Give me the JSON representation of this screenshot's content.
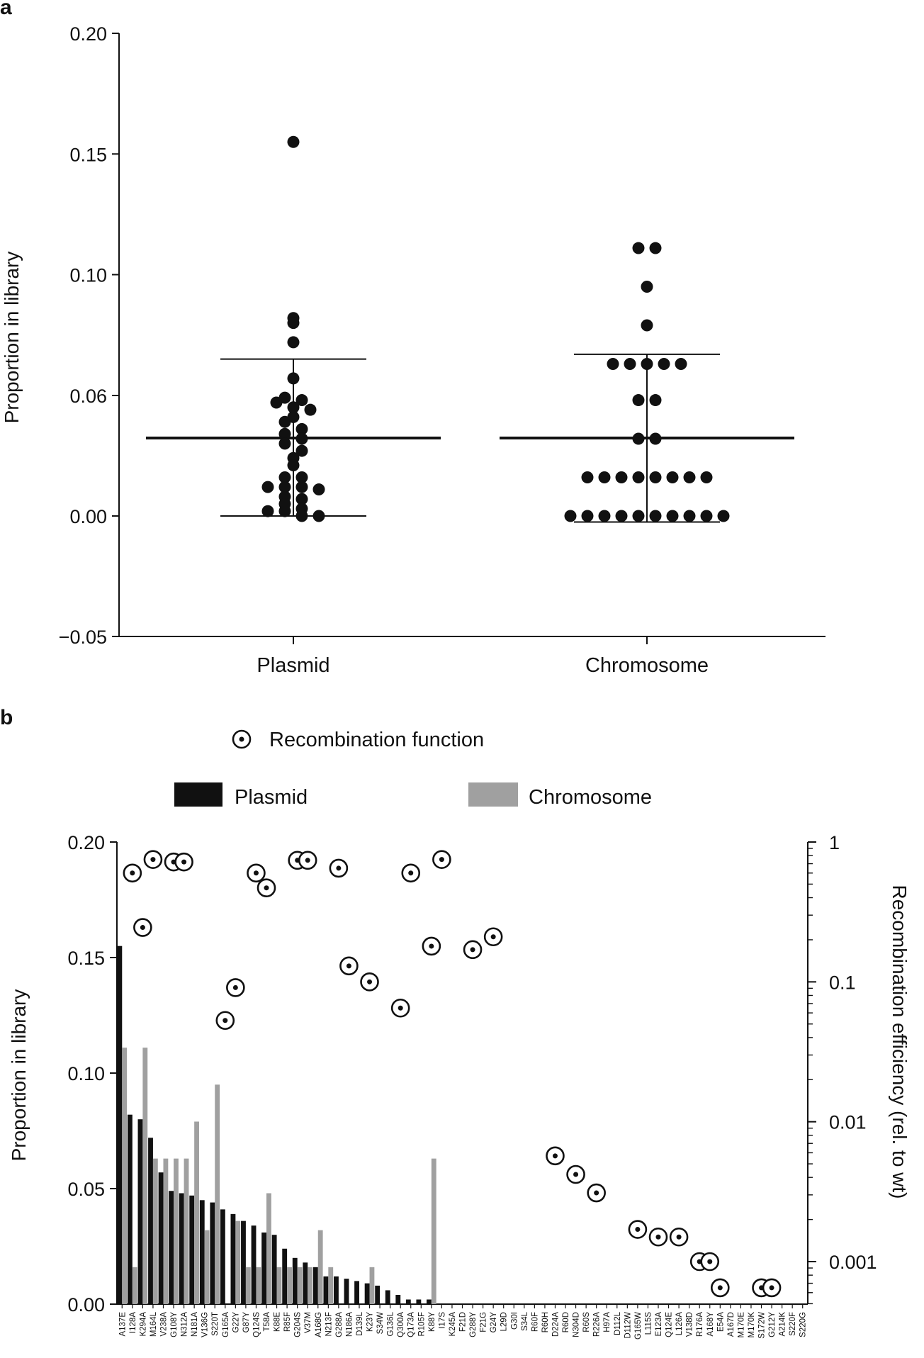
{
  "chart_data": [
    {
      "panel_label": "a",
      "type": "scatter",
      "ylabel": "Proportion in library",
      "ylim": [
        -0.05,
        0.2
      ],
      "yticks": [
        -0.05,
        0.0,
        0.06,
        0.1,
        0.15,
        0.2
      ],
      "ytick_labels": [
        "−0.05",
        "0.00",
        "0.06",
        "0.10",
        "0.15",
        "0.20"
      ],
      "categories": [
        "Plasmid",
        "Chromosome"
      ],
      "grid": false,
      "groups": [
        {
          "name": "Plasmid",
          "mean": 0.0323,
          "sd_upper": 0.065,
          "sd_lower": 0.0,
          "points": [
            0.155,
            0.082,
            0.08,
            0.072,
            0.057,
            0.049,
            0.048,
            0.047,
            0.045,
            0.044,
            0.041,
            0.039,
            0.036,
            0.034,
            0.032,
            0.03,
            0.027,
            0.024,
            0.021,
            0.016,
            0.016,
            0.012,
            0.012,
            0.012,
            0.011,
            0.008,
            0.007,
            0.005,
            0.003,
            0.002,
            0.002,
            0.0,
            0.0
          ]
        },
        {
          "name": "Chromosome",
          "mean": 0.0323,
          "sd_upper": 0.067,
          "sd_lower": -0.0025,
          "points": [
            0.111,
            0.111,
            0.095,
            0.079,
            0.063,
            0.063,
            0.063,
            0.063,
            0.063,
            0.048,
            0.048,
            0.032,
            0.032,
            0.016,
            0.016,
            0.016,
            0.016,
            0.016,
            0.016,
            0.016,
            0.016,
            0.0,
            0.0,
            0.0,
            0.0,
            0.0,
            0.0,
            0.0,
            0.0,
            0.0,
            0.0
          ]
        }
      ]
    },
    {
      "panel_label": "b",
      "type": "bar",
      "ylabel": "Proportion in library",
      "y2label": "Recombination efficiency (rel. to wt)",
      "ylim": [
        0,
        0.2
      ],
      "yticks": [
        0.0,
        0.05,
        0.1,
        0.15,
        0.2
      ],
      "ytick_labels": [
        "0.00",
        "0.05",
        "0.10",
        "0.15",
        "0.20"
      ],
      "y2_scale": "log",
      "y2lim": [
        0.0005,
        1
      ],
      "y2ticks": [
        0.001,
        0.01,
        0.1,
        1
      ],
      "y2tick_labels": [
        "0.001",
        "0.01",
        "0.1",
        "1"
      ],
      "legend": {
        "marker_label": "Recombination function",
        "items": [
          {
            "name": "Plasmid",
            "color": "#111111"
          },
          {
            "name": "Chromosome",
            "color": "#a0a0a0"
          }
        ]
      },
      "categories": [
        "A137E",
        "I128A",
        "K294A",
        "M164L",
        "V238A",
        "G108Y",
        "N312A",
        "N181A",
        "V136G",
        "S220T",
        "G165A",
        "G22Y",
        "G87Y",
        "Q124S",
        "T58A",
        "K88E",
        "R85F",
        "G204S",
        "V37M",
        "A168G",
        "N213F",
        "G288A",
        "N186A",
        "D139L",
        "K23Y",
        "S34W",
        "G136L",
        "Q300A",
        "Q173A",
        "R105F",
        "K88Y",
        "I17S",
        "K245A",
        "F21D",
        "G288Y",
        "F21G",
        "G24Y",
        "L29D",
        "G30I",
        "S34L",
        "R60F",
        "R60H",
        "D224A",
        "R60D",
        "N304D",
        "R60S",
        "R226A",
        "H97A",
        "D112L",
        "D112W",
        "G165W",
        "L115S",
        "E123A",
        "Q124E",
        "L126A",
        "V138D",
        "R176A",
        "A168Y",
        "E54A",
        "A167D",
        "M170E",
        "M170K",
        "S172W",
        "G212Y",
        "A214K",
        "S220F",
        "S220G"
      ],
      "series": [
        {
          "name": "Plasmid",
          "values": [
            0.155,
            0.082,
            0.08,
            0.072,
            0.057,
            0.049,
            0.048,
            0.047,
            0.045,
            0.044,
            0.041,
            0.039,
            0.036,
            0.034,
            0.031,
            0.03,
            0.024,
            0.02,
            0.018,
            0.016,
            0.012,
            0.012,
            0.011,
            0.01,
            0.009,
            0.008,
            0.006,
            0.004,
            0.002,
            0.002,
            0.002,
            0,
            0,
            0,
            0,
            0,
            0,
            0,
            0,
            0,
            0,
            0,
            0,
            0,
            0,
            0,
            0,
            0,
            0,
            0,
            0,
            0,
            0,
            0,
            0,
            0,
            0,
            0,
            0,
            0,
            0,
            0,
            0,
            0,
            0,
            0,
            0
          ]
        },
        {
          "name": "Chromosome",
          "values": [
            0.111,
            0.016,
            0.111,
            0.063,
            0.063,
            0.063,
            0.063,
            0.079,
            0.032,
            0.095,
            0,
            0.036,
            0.016,
            0.016,
            0.048,
            0.016,
            0.016,
            0.016,
            0.016,
            0.032,
            0.016,
            0,
            0,
            0,
            0.016,
            0,
            0,
            0,
            0,
            0,
            0.063,
            0,
            0,
            0,
            0,
            0,
            0,
            0,
            0,
            0,
            0,
            0,
            0,
            0,
            0,
            0,
            0,
            0,
            0,
            0,
            0,
            0,
            0,
            0,
            0,
            0,
            0,
            0,
            0,
            0,
            0,
            0,
            0,
            0,
            0,
            0,
            0
          ]
        }
      ],
      "recombination_points": [
        {
          "category": "I128A",
          "value": 0.6
        },
        {
          "category": "K294A",
          "value": 0.245
        },
        {
          "category": "M164L",
          "value": 0.75
        },
        {
          "category": "G108Y",
          "value": 0.72
        },
        {
          "category": "N312A",
          "value": 0.72
        },
        {
          "category": "G165A",
          "value": 0.053
        },
        {
          "category": "G22Y",
          "value": 0.091
        },
        {
          "category": "Q124S",
          "value": 0.6
        },
        {
          "category": "T58A",
          "value": 0.47
        },
        {
          "category": "G204S",
          "value": 0.74
        },
        {
          "category": "V37M",
          "value": 0.74
        },
        {
          "category": "G288A",
          "value": 0.65
        },
        {
          "category": "N186A",
          "value": 0.13
        },
        {
          "category": "K23Y",
          "value": 0.1
        },
        {
          "category": "Q300A",
          "value": 0.065
        },
        {
          "category": "Q173A",
          "value": 0.6
        },
        {
          "category": "K88Y",
          "value": 0.18
        },
        {
          "category": "I17S",
          "value": 0.75
        },
        {
          "category": "G288Y",
          "value": 0.17
        },
        {
          "category": "G24Y",
          "value": 0.21
        },
        {
          "category": "D224A",
          "value": 0.0057
        },
        {
          "category": "N304D",
          "value": 0.0042
        },
        {
          "category": "R226A",
          "value": 0.0031
        },
        {
          "category": "G165W",
          "value": 0.0017
        },
        {
          "category": "E123A",
          "value": 0.0015
        },
        {
          "category": "L126A",
          "value": 0.0015
        },
        {
          "category": "R176A",
          "value": 0.001
        },
        {
          "category": "A168Y",
          "value": 0.001
        },
        {
          "category": "E54A",
          "value": 0.00065
        },
        {
          "category": "S172W",
          "value": 0.00065
        },
        {
          "category": "G212Y",
          "value": 0.00065
        }
      ]
    }
  ]
}
